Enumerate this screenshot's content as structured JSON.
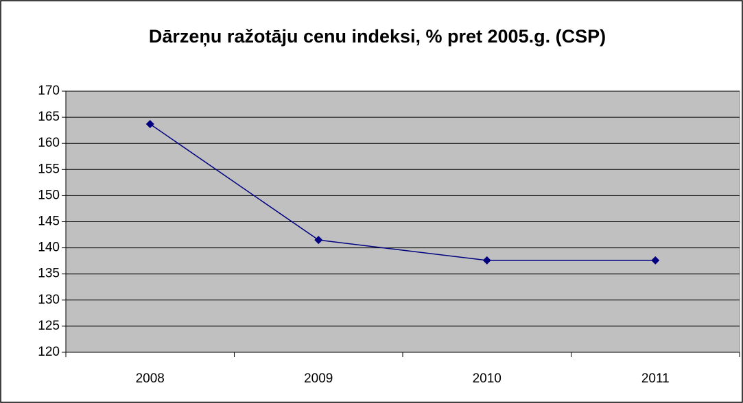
{
  "chart_data": {
    "type": "line",
    "title": "Dārzeņu ražotāju cenu indeksi, % pret 2005.g. (CSP)",
    "categories": [
      "2008",
      "2009",
      "2010",
      "2011"
    ],
    "series": [
      {
        "name": "Dārzeņu ražotāju cenu indeksi",
        "color": "#000080",
        "values": [
          163.7,
          141.5,
          137.6,
          137.6
        ]
      }
    ],
    "ylim": [
      120,
      170
    ],
    "yticks": [
      120,
      125,
      130,
      135,
      140,
      145,
      150,
      155,
      160,
      165,
      170
    ],
    "grid": true,
    "plot_background": "#c0c0c0",
    "legend": false
  }
}
